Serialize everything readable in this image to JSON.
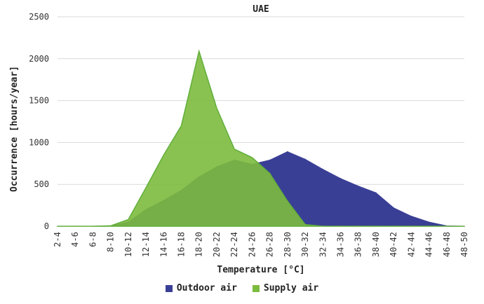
{
  "chart_data": {
    "type": "area",
    "title": "UAE",
    "xlabel": "Temperature [°C]",
    "ylabel": "Occurrence [hours/year]",
    "ylim": [
      0,
      2500
    ],
    "yticks": [
      0,
      500,
      1000,
      1500,
      2000,
      2500
    ],
    "grid": true,
    "legend_position": "bottom",
    "categories": [
      "2-4",
      "4-6",
      "6-8",
      "8-10",
      "10-12",
      "12-14",
      "14-16",
      "16-18",
      "18-20",
      "20-22",
      "22-24",
      "24-26",
      "26-28",
      "28-30",
      "30-32",
      "32-34",
      "34-36",
      "36-38",
      "38-40",
      "40-42",
      "42-44",
      "44-46",
      "46-48",
      "48-50"
    ],
    "series": [
      {
        "name": "Outdoor air",
        "color": "#3a3f96",
        "values": [
          0,
          0,
          0,
          5,
          50,
          200,
          310,
          430,
          590,
          710,
          790,
          740,
          790,
          890,
          800,
          680,
          570,
          480,
          400,
          220,
          120,
          50,
          5,
          0
        ]
      },
      {
        "name": "Supply air",
        "color": "#7dbb3e",
        "values": [
          0,
          0,
          0,
          5,
          80,
          460,
          850,
          1200,
          2090,
          1410,
          920,
          820,
          630,
          300,
          20,
          0,
          0,
          0,
          0,
          0,
          0,
          0,
          0,
          0
        ]
      }
    ]
  }
}
